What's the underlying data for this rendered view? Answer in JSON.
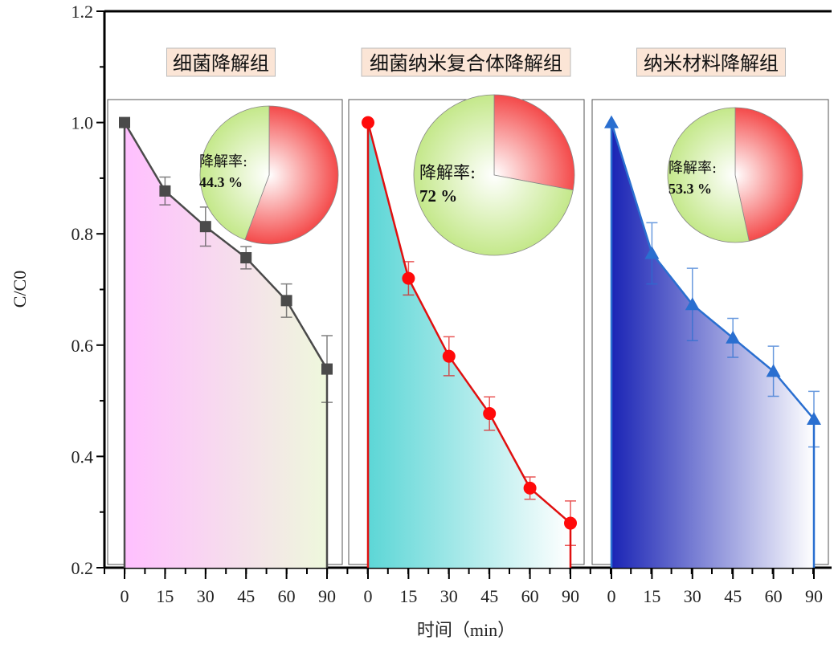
{
  "chart_data": {
    "type": "line",
    "ylabel": "C/C0",
    "xlabel": "时间（min）",
    "ylim": [
      0.2,
      1.2
    ],
    "yticks": [
      "0.2",
      "0.4",
      "0.6",
      "0.8",
      "1.0",
      "1.2"
    ],
    "x": [
      0,
      15,
      30,
      45,
      60,
      90
    ],
    "xtick_labels": [
      "0",
      "15",
      "30",
      "45",
      "60",
      "90"
    ],
    "panels": [
      {
        "title": "细菌降解组",
        "marker": "square",
        "line_color": "#4a4a4a",
        "fill_from": "#ffbfff",
        "fill_to": "#eef8dc",
        "values": [
          1.0,
          0.877,
          0.813,
          0.757,
          0.68,
          0.557
        ],
        "errors": [
          0,
          0.025,
          0.035,
          0.02,
          0.03,
          0.06
        ],
        "pie": {
          "label": "降解率:",
          "value_text": "44.3 %",
          "degraded": 44.3
        }
      },
      {
        "title": "细菌纳米复合体降解组",
        "marker": "circle",
        "line_color": "#e01010",
        "fill_from": "#5cd6d6",
        "fill_to": "#ffffff",
        "values": [
          1.0,
          0.72,
          0.58,
          0.477,
          0.343,
          0.28
        ],
        "errors": [
          0,
          0.03,
          0.035,
          0.03,
          0.02,
          0.04
        ],
        "pie": {
          "label": "降解率:",
          "value_text": "72 %",
          "degraded": 72
        }
      },
      {
        "title": "纳米材料降解组",
        "marker": "triangle",
        "line_color": "#2a6fd0",
        "fill_from": "#1a24b5",
        "fill_to": "#ffffff",
        "values": [
          1.0,
          0.765,
          0.673,
          0.613,
          0.553,
          0.467
        ],
        "errors": [
          0,
          0.055,
          0.065,
          0.035,
          0.045,
          0.05
        ],
        "pie": {
          "label": "降解率:",
          "value_text": "53.3 %",
          "degraded": 53.3
        }
      }
    ],
    "colors": {
      "pie_remaining": "#f44a4a",
      "pie_degraded": "#c4e88a",
      "title_box": "#fbe5d6"
    }
  }
}
